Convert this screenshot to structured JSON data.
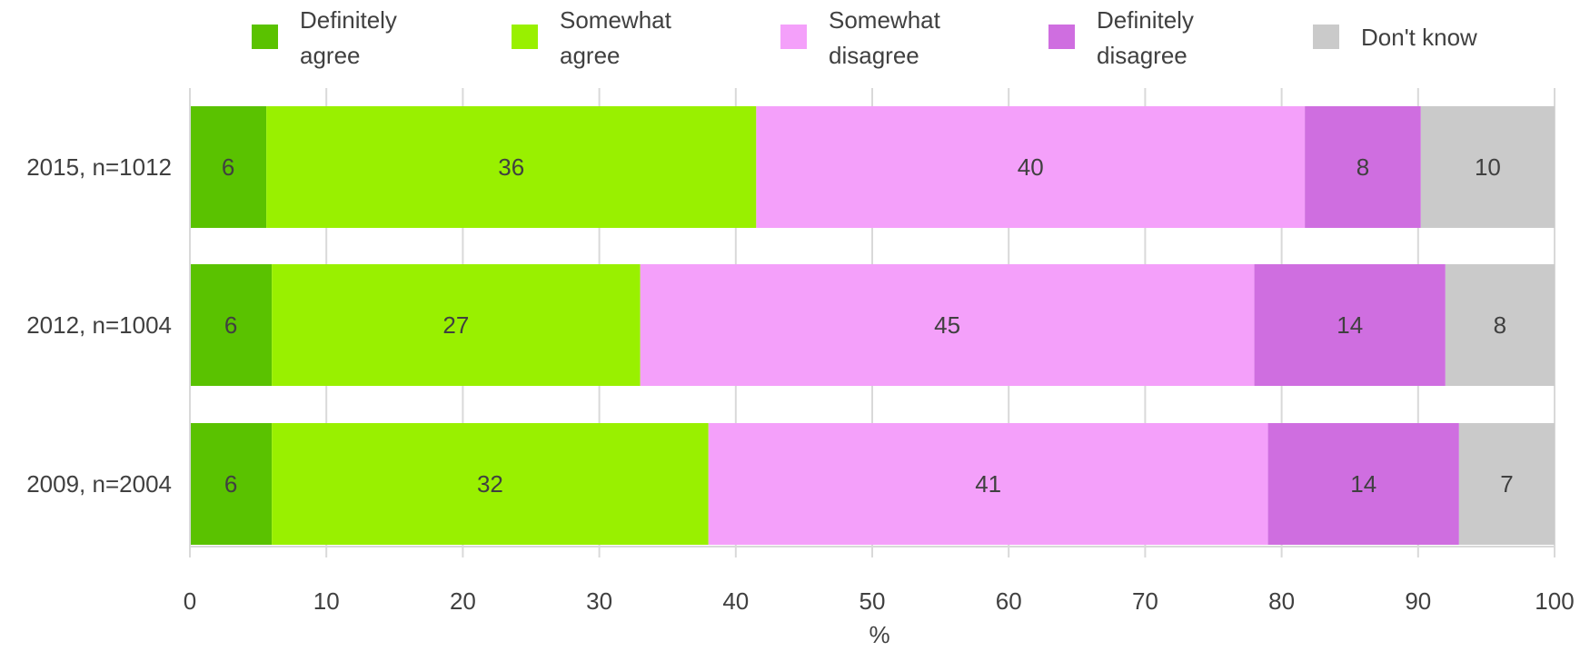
{
  "chart_data": {
    "type": "bar",
    "orientation": "horizontal",
    "stacked": true,
    "categories": [
      "2015, n=1012",
      "2012, n=1004",
      "2009, n=2004"
    ],
    "series": [
      {
        "name": "Definitely agree",
        "color": "#5ac200",
        "values": [
          5.6,
          6,
          6
        ],
        "labels": [
          "6",
          "6",
          "6"
        ]
      },
      {
        "name": "Somewhat agree",
        "color": "#99f000",
        "values": [
          35.9,
          27,
          32
        ],
        "labels": [
          "36",
          "27",
          "32"
        ]
      },
      {
        "name": "Somewhat disagree",
        "color": "#f4a0fa",
        "values": [
          40.2,
          45,
          41
        ],
        "labels": [
          "40",
          "45",
          "41"
        ]
      },
      {
        "name": "Definitely disagree",
        "color": "#cf6ee0",
        "values": [
          8.5,
          14,
          14
        ],
        "labels": [
          "8",
          "14",
          "14"
        ]
      },
      {
        "name": "Don't know",
        "color": "#cacaca",
        "values": [
          9.8,
          8,
          7
        ],
        "labels": [
          "10",
          "8",
          "7"
        ]
      }
    ],
    "xlim": [
      0,
      100
    ],
    "xticks": [
      0,
      10,
      20,
      30,
      40,
      50,
      60,
      70,
      80,
      90,
      100
    ],
    "xlabel": "%",
    "ylabel": "",
    "title": "",
    "grid": true,
    "legend_position": "top"
  }
}
